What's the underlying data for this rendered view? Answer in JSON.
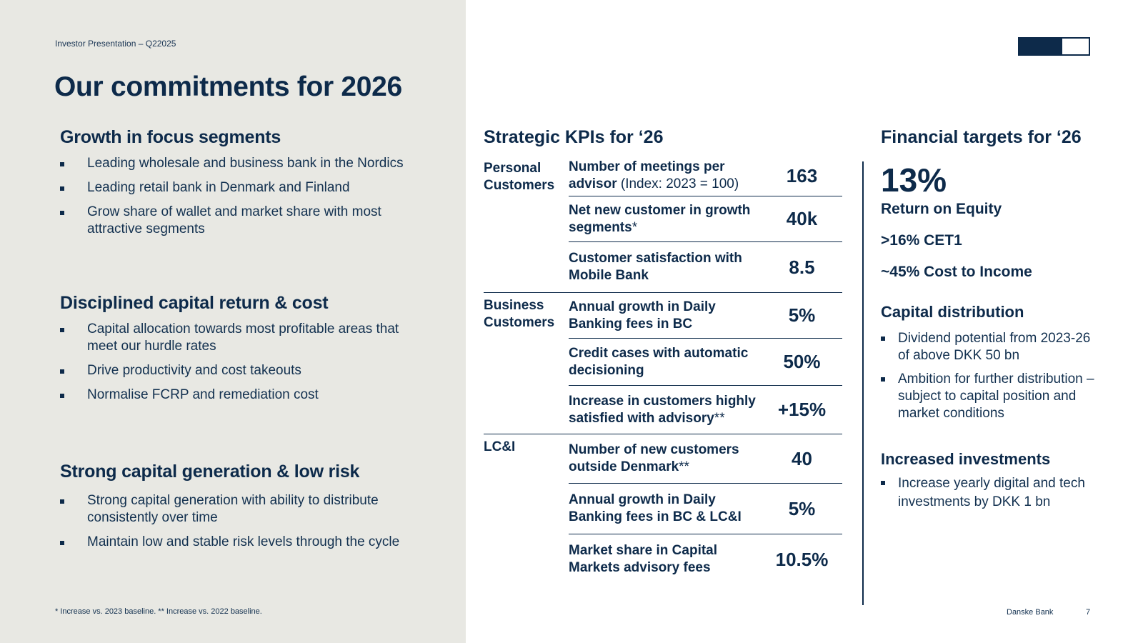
{
  "header": {
    "eyebrow": "Investor Presentation – Q22025",
    "title": "Our commitments for 2026"
  },
  "left": {
    "sections": [
      {
        "heading": "Growth in focus segments",
        "bullets": [
          "Leading wholesale and business bank in the Nordics",
          "Leading retail bank in Denmark and Finland",
          "Grow share of wallet and market share with most attractive segments"
        ]
      },
      {
        "heading": "Disciplined capital return & cost",
        "bullets": [
          "Capital allocation towards most profitable areas that meet our hurdle rates",
          "Drive productivity and cost takeouts",
          "Normalise FCRP and remediation cost"
        ]
      },
      {
        "heading": "Strong capital generation & low risk",
        "bullets": [
          "Strong capital generation with ability to distribute consistently over time",
          "Maintain low and stable risk levels through the cycle"
        ]
      }
    ],
    "footnote": "* Increase vs. 2023 baseline. ** Increase vs. 2022 baseline."
  },
  "kpis": {
    "title": "Strategic KPIs for ‘26",
    "groups": [
      {
        "label": "Personal Customers",
        "rows": [
          {
            "desc": "Number of meetings per advisor",
            "note": " (Index: 2023 = 100)",
            "value": "163"
          },
          {
            "desc": "Net new customer in growth segments",
            "note": "*",
            "value": "40k"
          },
          {
            "desc": "Customer satisfaction with Mobile Bank",
            "note": "",
            "value": "8.5"
          }
        ]
      },
      {
        "label": "Business Customers",
        "rows": [
          {
            "desc": "Annual growth in Daily Banking fees in BC",
            "note": "",
            "value": "5%"
          },
          {
            "desc": "Credit cases with automatic decisioning",
            "note": "",
            "value": "50%"
          },
          {
            "desc": "Increase in customers highly satisfied with advisory",
            "note": "**",
            "value": "+15%"
          }
        ]
      },
      {
        "label": "LC&I",
        "rows": [
          {
            "desc": "Number of new customers outside Denmark",
            "note": "**",
            "value": "40"
          },
          {
            "desc": "Annual growth in Daily Banking fees in BC & LC&I",
            "note": "",
            "value": "5%"
          },
          {
            "desc": "Market share in Capital Markets advisory fees",
            "note": "",
            "value": "10.5%"
          }
        ]
      }
    ]
  },
  "financial": {
    "title": "Financial targets for ‘26",
    "roe_value": "13%",
    "roe_label": "Return on Equity",
    "cet1": ">16% CET1",
    "cost_income": "~45% Cost to Income",
    "capital_distribution": {
      "heading": "Capital distribution",
      "bullets": [
        "Dividend potential from 2023-26 of above DKK 50 bn",
        "Ambition for further distribution – subject to capital position and market conditions"
      ]
    },
    "investments": {
      "heading": "Increased investments",
      "bullets": [
        "Increase yearly digital and tech investments by DKK 1 bn"
      ]
    }
  },
  "footer": {
    "brand": "Danske Bank",
    "page": "7"
  },
  "colors": {
    "navy": "#0d2a4a",
    "panel": "#e8e8e3"
  }
}
